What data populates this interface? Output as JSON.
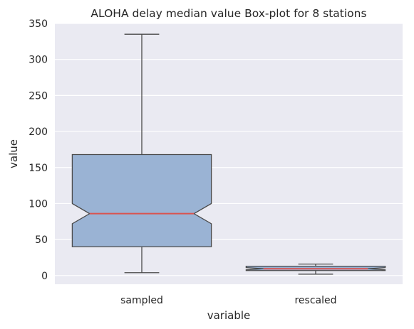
{
  "chart_data": {
    "type": "box",
    "title": "ALOHA delay median value Box-plot for 8 stations",
    "xlabel": "variable",
    "ylabel": "value",
    "ylim": [
      -12,
      350
    ],
    "yticks": [
      0,
      50,
      100,
      150,
      200,
      250,
      300,
      350
    ],
    "grid": true,
    "categories": [
      "sampled",
      "rescaled"
    ],
    "boxes": [
      {
        "category": "sampled",
        "whisker_low": 4,
        "q1": 40,
        "median": 86,
        "q3": 168,
        "whisker_high": 335,
        "notch_low": 72,
        "notch_high": 100
      },
      {
        "category": "rescaled",
        "whisker_low": 2,
        "q1": 7,
        "median": 9.5,
        "q3": 13,
        "whisker_high": 16,
        "notch_low": 8,
        "notch_high": 11
      }
    ],
    "colors": {
      "background": "#eaeaf2",
      "grid": "#ffffff",
      "box_fill": "#9ab3d4",
      "box_edge": "#4a4a4a",
      "median": "#d9534f"
    }
  }
}
